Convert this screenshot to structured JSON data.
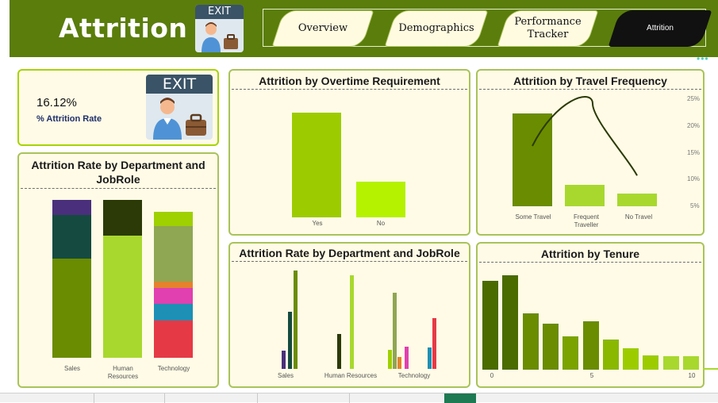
{
  "header": {
    "title": "Attrition",
    "exit_text": "EXIT",
    "tabs": [
      {
        "label": "Overview",
        "active": false
      },
      {
        "label": "Demographics",
        "active": false
      },
      {
        "label": "Performance Tracker",
        "active": false
      },
      {
        "label": "Attrition",
        "active": true
      }
    ]
  },
  "kpi": {
    "value": "16.12%",
    "label": "% Attrition Rate",
    "exit_text": "EXIT"
  },
  "colors": {
    "header_bg": "#5a7d0c",
    "panel_bg": "#fffbe6",
    "panel_border": "#a9c35a",
    "bar_dark": "#6a8c00",
    "bar_light": "#b4f200",
    "bar_mid": "#9ccc00"
  },
  "charts": {
    "dept_stacked": {
      "title": "Attrition Rate by Department and JobRole",
      "chart_data": {
        "type": "bar",
        "stacked": true,
        "categories": [
          "Sales",
          "Human Resources",
          "Technology"
        ],
        "series": [
          {
            "values": [
              0.61,
              0,
              0
            ],
            "color": "#6a8c00"
          },
          {
            "values": [
              0.27,
              0,
              0
            ],
            "color": "#154a40"
          },
          {
            "values": [
              0.09,
              0,
              0
            ],
            "color": "#4a2f7d"
          },
          {
            "values": [
              0,
              0.75,
              0
            ],
            "color": "#a8d82e"
          },
          {
            "values": [
              0,
              0.22,
              0
            ],
            "color": "#2b3a06"
          },
          {
            "values": [
              0,
              0,
              0.23
            ],
            "color": "#e63946"
          },
          {
            "values": [
              0,
              0,
              0.1
            ],
            "color": "#1e8fb5"
          },
          {
            "values": [
              0,
              0,
              0.1
            ],
            "color": "#e040b0"
          },
          {
            "values": [
              0,
              0,
              0.04
            ],
            "color": "#e4822d"
          },
          {
            "values": [
              0,
              0,
              0.34
            ],
            "color": "#8fa653"
          },
          {
            "values": [
              0,
              0,
              0.09
            ],
            "color": "#9fd000"
          }
        ]
      }
    },
    "overtime": {
      "title": "Attrition by Overtime Requirement",
      "chart_data": {
        "type": "bar",
        "categories": [
          "Yes",
          "No"
        ],
        "values": [
          1.0,
          0.34
        ],
        "colors": [
          "#9ccc00",
          "#b4f200"
        ]
      }
    },
    "travel": {
      "title": "Attrition by Travel Frequency",
      "chart_data": {
        "type": "bar",
        "categories": [
          "Some Travel",
          "Frequent Traveller",
          "No Travel"
        ],
        "values": [
          22,
          5,
          3
        ],
        "line_values": [
          15,
          25,
          8
        ],
        "y_ticks": [
          "25%",
          "20%",
          "15%",
          "10%",
          "5%"
        ],
        "colors": [
          "#6a8c00",
          "#a8d82e",
          "#a8d82e"
        ],
        "line_color": "#2b3a06"
      }
    },
    "dept_grouped": {
      "title": "Attrition Rate by Department and JobRole",
      "chart_data": {
        "type": "bar",
        "categories": [
          "Sales",
          "Human Resources",
          "Technology"
        ],
        "groups": [
          [
            {
              "value": 0.18,
              "color": "#4a2f7d"
            },
            {
              "value": 0.56,
              "color": "#154a40"
            },
            {
              "value": 0.97,
              "color": "#6a8c00"
            }
          ],
          [
            {
              "value": 0.34,
              "color": "#2b3a06"
            },
            {
              "value": 0.92,
              "color": "#a8d82e"
            }
          ],
          [
            {
              "value": 0.19,
              "color": "#9fd000"
            },
            {
              "value": 0.75,
              "color": "#8fa653"
            },
            {
              "value": 0.12,
              "color": "#e4822d"
            },
            {
              "value": 0.22,
              "color": "#e040b0"
            },
            {
              "value": 0.21,
              "color": "#1e8fb5"
            },
            {
              "value": 0.5,
              "color": "#e63946"
            }
          ]
        ]
      }
    },
    "tenure": {
      "title": "Attrition by Tenure",
      "chart_data": {
        "type": "bar",
        "x_ticks": [
          "0",
          "5",
          "10"
        ],
        "values": [
          0.91,
          0.97,
          0.58,
          0.47,
          0.34,
          0.5,
          0.31,
          0.22,
          0.15,
          0.14,
          0.14,
          0.02
        ],
        "colors": [
          "#4a6b00",
          "#4a6b00",
          "#6a8c00",
          "#6a8c00",
          "#7aa300",
          "#6a8c00",
          "#8ab800",
          "#9ccc00",
          "#9ccc00",
          "#a8d82e",
          "#a8d82e",
          "#a8d82e"
        ]
      }
    }
  },
  "taskbar": {}
}
